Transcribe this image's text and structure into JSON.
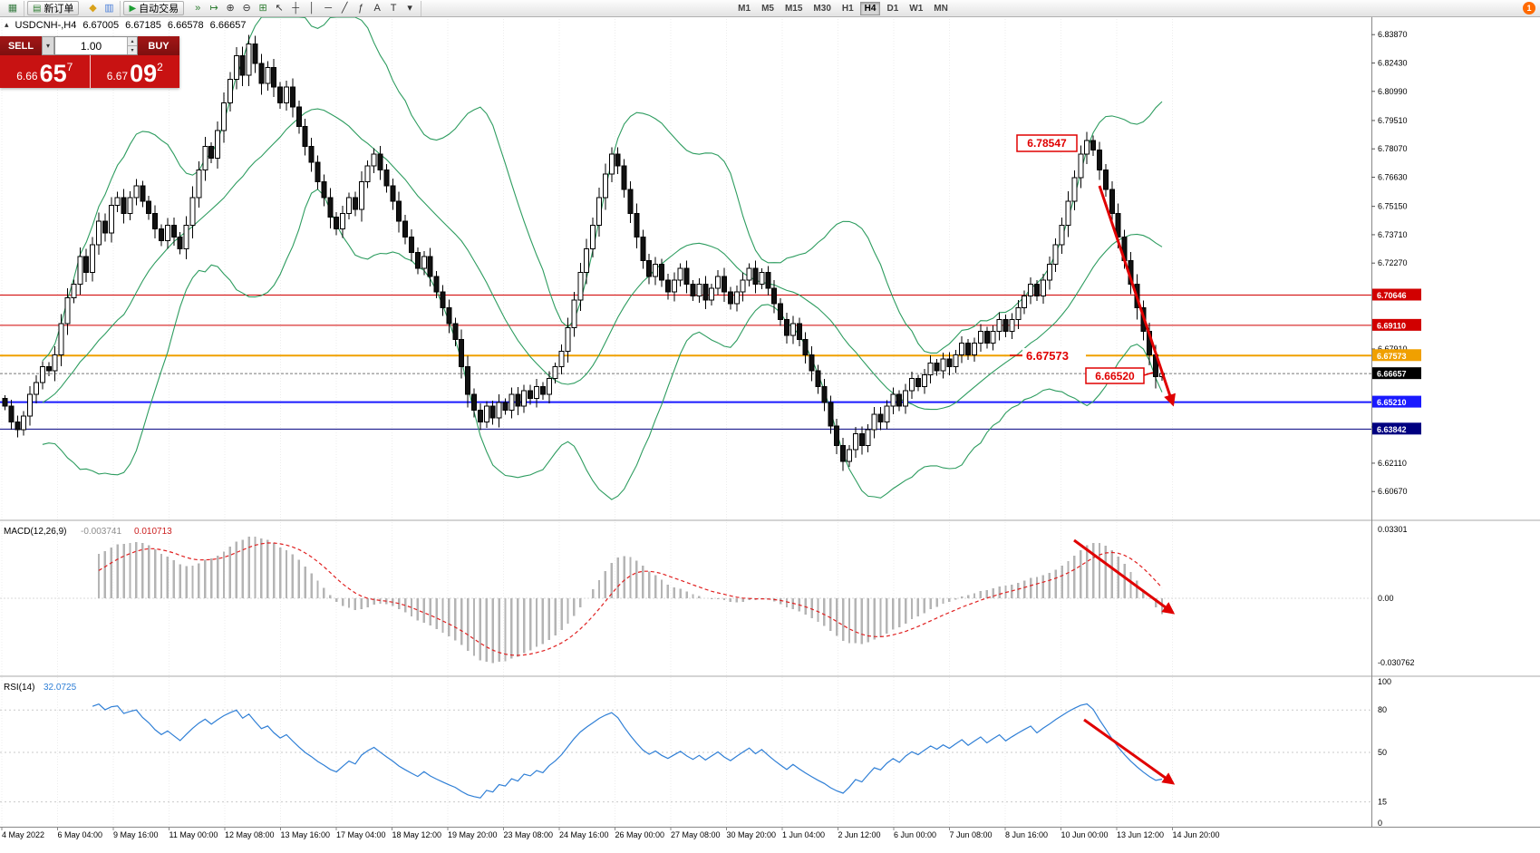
{
  "toolbar": {
    "left_icons": [
      {
        "name": "chart-window-icon",
        "glyph": "▦",
        "color": "#3a7d44"
      }
    ],
    "new_order_label": "新订单",
    "new_order_icon": "▤",
    "mid_icons": [
      {
        "name": "navigator-icon",
        "glyph": "◆",
        "color": "#d9a21b"
      },
      {
        "name": "terminal-icon",
        "glyph": "▥",
        "color": "#4a7fd9"
      }
    ],
    "auto_trading_label": "自动交易",
    "auto_trading_icon": "▶",
    "tool_icons": [
      {
        "name": "auto-scroll-icon",
        "glyph": "»",
        "color": "#2e7d32"
      },
      {
        "name": "chart-shift-icon",
        "glyph": "↦",
        "color": "#2e7d32"
      },
      {
        "name": "zoom-in-icon",
        "glyph": "⊕",
        "color": "#333333"
      },
      {
        "name": "zoom-out-icon",
        "glyph": "⊖",
        "color": "#333333"
      },
      {
        "name": "tile-windows-icon",
        "glyph": "⊞",
        "color": "#2e7d32"
      },
      {
        "name": "cursor-icon",
        "glyph": "↖",
        "color": "#333333"
      },
      {
        "name": "crosshair-icon",
        "glyph": "┼",
        "color": "#333333"
      },
      {
        "name": "vertical-line-icon",
        "glyph": "│",
        "color": "#333333"
      },
      {
        "name": "horizontal-line-icon",
        "glyph": "─",
        "color": "#333333"
      },
      {
        "name": "trendline-icon",
        "glyph": "╱",
        "color": "#333333"
      },
      {
        "name": "fibonacci-icon",
        "glyph": "ƒ",
        "color": "#333333"
      },
      {
        "name": "text-icon",
        "glyph": "A",
        "color": "#333333"
      },
      {
        "name": "label-icon",
        "glyph": "T",
        "color": "#333333"
      },
      {
        "name": "arrows-icon",
        "glyph": "▾",
        "color": "#333333"
      }
    ],
    "timeframes": [
      {
        "label": "M1"
      },
      {
        "label": "M5"
      },
      {
        "label": "M15"
      },
      {
        "label": "M30"
      },
      {
        "label": "H1"
      },
      {
        "label": "H4",
        "active": true
      },
      {
        "label": "D1"
      },
      {
        "label": "W1"
      },
      {
        "label": "MN"
      }
    ],
    "notification_count": "1"
  },
  "info": {
    "direction_arrow": "▴",
    "symbol": "USDCNH-,H4",
    "open": "6.67005",
    "high": "6.67185",
    "low": "6.66578",
    "close": "6.66657"
  },
  "trade": {
    "sell_label": "SELL",
    "buy_label": "BUY",
    "dropdown_arrow": "▾",
    "volume": "1.00",
    "spin_up": "▴",
    "spin_down": "▾",
    "bid_small": "6.66",
    "bid_big": "65",
    "bid_sup": "7",
    "ask_small": "6.67",
    "ask_big": "09",
    "ask_sup": "2"
  },
  "annotations": {
    "peak_label": "6.78547",
    "mid_label": "6.67573",
    "low_label": "6.66520"
  },
  "chart_data": {
    "type": "candlestick",
    "symbol": "USDCNH-",
    "timeframe": "H4",
    "closes": [
      6.65,
      6.642,
      6.638,
      6.645,
      6.656,
      6.662,
      6.67,
      6.668,
      6.676,
      6.692,
      6.705,
      6.712,
      6.726,
      6.718,
      6.732,
      6.744,
      6.738,
      6.752,
      6.756,
      6.748,
      6.756,
      6.762,
      6.754,
      6.748,
      6.74,
      6.734,
      6.742,
      6.736,
      6.73,
      6.742,
      6.756,
      6.77,
      6.782,
      6.776,
      6.79,
      6.804,
      6.816,
      6.828,
      6.818,
      6.834,
      6.824,
      6.814,
      6.822,
      6.812,
      6.804,
      6.812,
      6.802,
      6.792,
      6.782,
      6.774,
      6.764,
      6.756,
      6.746,
      6.74,
      6.748,
      6.756,
      6.75,
      6.764,
      6.772,
      6.778,
      6.77,
      6.762,
      6.754,
      6.744,
      6.736,
      6.728,
      6.72,
      6.726,
      6.716,
      6.708,
      6.7,
      6.692,
      6.684,
      6.67,
      6.656,
      6.648,
      6.642,
      6.65,
      6.644,
      6.652,
      6.648,
      6.656,
      6.65,
      6.658,
      6.654,
      6.66,
      6.656,
      6.664,
      6.67,
      6.678,
      6.69,
      6.704,
      6.718,
      6.73,
      6.742,
      6.756,
      6.768,
      6.778,
      6.772,
      6.76,
      6.748,
      6.736,
      6.724,
      6.716,
      6.722,
      6.714,
      6.708,
      6.714,
      6.72,
      6.712,
      6.706,
      6.712,
      6.704,
      6.71,
      6.716,
      6.708,
      6.702,
      6.708,
      6.714,
      6.72,
      6.712,
      6.718,
      6.71,
      6.702,
      6.694,
      6.686,
      6.692,
      6.684,
      6.676,
      6.668,
      6.66,
      6.652,
      6.64,
      6.63,
      6.622,
      6.628,
      6.636,
      6.63,
      6.638,
      6.646,
      6.642,
      6.65,
      6.656,
      6.65,
      6.658,
      6.664,
      6.66,
      6.666,
      6.672,
      6.668,
      6.674,
      6.67,
      6.676,
      6.682,
      6.676,
      6.682,
      6.688,
      6.682,
      6.688,
      6.694,
      6.688,
      6.694,
      6.7,
      6.706,
      6.712,
      6.706,
      6.714,
      6.722,
      6.732,
      6.742,
      6.754,
      6.766,
      6.778,
      6.785,
      6.78,
      6.77,
      6.76,
      6.748,
      6.736,
      6.724,
      6.712,
      6.7,
      6.688,
      6.676,
      6.665,
      6.6666
    ],
    "bollinger": {
      "period": 20,
      "deviations": 2,
      "color": "#2d9c5f"
    },
    "hlines": [
      {
        "price": 6.70646,
        "color": "#d10000",
        "width": 1
      },
      {
        "price": 6.6911,
        "color": "#d10000",
        "width": 1
      },
      {
        "price": 6.67573,
        "color": "#f0a000",
        "width": 2
      },
      {
        "price": 6.6521,
        "color": "#1a1aff",
        "width": 2
      },
      {
        "price": 6.63842,
        "color": "#000080",
        "width": 1
      }
    ],
    "bid_line": {
      "price": 6.66657,
      "color": "#777777"
    },
    "price_axis": {
      "max": 6.848,
      "min": 6.593,
      "ticks": [
        "6.83870",
        "6.82430",
        "6.80990",
        "6.79510",
        "6.78070",
        "6.76630",
        "6.75150",
        "6.73710",
        "6.72270",
        "6.67910",
        "6.63950",
        "6.62110",
        "6.60670"
      ],
      "badges": [
        {
          "value": "6.70646",
          "color": "#d10000"
        },
        {
          "value": "6.69110",
          "color": "#d10000"
        },
        {
          "value": "6.67573",
          "color": "#f0a000"
        },
        {
          "value": "6.66657",
          "color": "#000000"
        },
        {
          "value": "6.65210",
          "color": "#1a1aff"
        },
        {
          "value": "6.63842",
          "color": "#000080"
        }
      ]
    },
    "time_axis": {
      "labels": [
        "4 May 2022",
        "6 May 04:00",
        "9 May 16:00",
        "11 May 00:00",
        "12 May 08:00",
        "13 May 16:00",
        "17 May 04:00",
        "18 May 12:00",
        "19 May 20:00",
        "23 May 08:00",
        "24 May 16:00",
        "26 May 00:00",
        "27 May 08:00",
        "30 May 20:00",
        "1 Jun 04:00",
        "2 Jun 12:00",
        "6 Jun 00:00",
        "7 Jun 08:00",
        "8 Jun 16:00",
        "10 Jun 00:00",
        "13 Jun 12:00",
        "14 Jun 20:00"
      ]
    },
    "macd": {
      "label": "MACD(12,26,9)",
      "value_main": "-0.003741",
      "value_signal": "0.010713",
      "ticks": [
        "0.03301",
        "0.00",
        "-0.030762"
      ],
      "histogram_color": "#b4b4b4",
      "signal_color": "#e02020"
    },
    "rsi": {
      "label": "RSI(14)",
      "value": "32.0725",
      "ticks": [
        "100",
        "80",
        "50",
        "15",
        "0"
      ],
      "levels": [
        80,
        50,
        15
      ],
      "color": "#2f7fd6"
    }
  }
}
